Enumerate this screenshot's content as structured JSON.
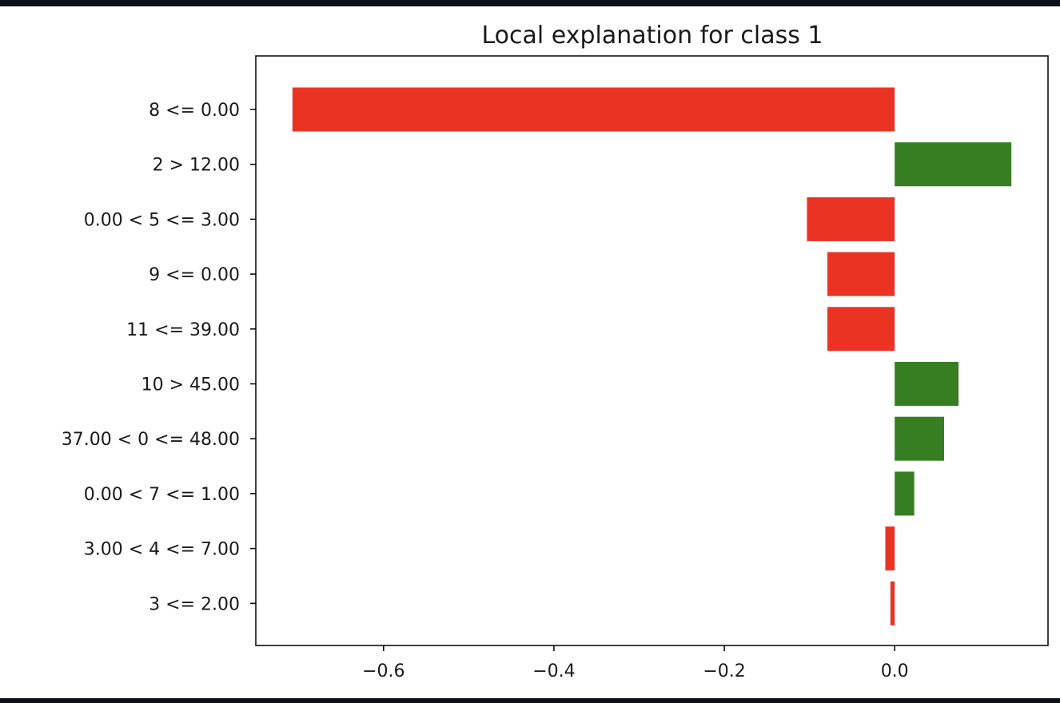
{
  "chart_data": {
    "type": "bar",
    "orientation": "horizontal",
    "title": "Local explanation for class 1",
    "xlabel": "",
    "ylabel": "",
    "categories": [
      "8 <= 0.00",
      "2 > 12.00",
      "0.00 < 5 <= 3.00",
      "9 <= 0.00",
      "11 <= 39.00",
      "10 > 45.00",
      "37.00 < 0 <= 48.00",
      "0.00 < 7 <= 1.00",
      "3.00 < 4 <= 7.00",
      "3 <= 2.00"
    ],
    "values": [
      -0.707,
      0.137,
      -0.103,
      -0.079,
      -0.079,
      0.075,
      0.058,
      0.023,
      -0.011,
      -0.005
    ],
    "xlim": [
      -0.75,
      0.18
    ],
    "xticks": [
      -0.6,
      -0.4,
      -0.2,
      0.0
    ],
    "xtick_labels": [
      "−0.6",
      "−0.4",
      "−0.2",
      "0.0"
    ],
    "colors": {
      "positive": "#377e22",
      "negative": "#eb3324"
    },
    "grid": false,
    "legend": "none"
  }
}
